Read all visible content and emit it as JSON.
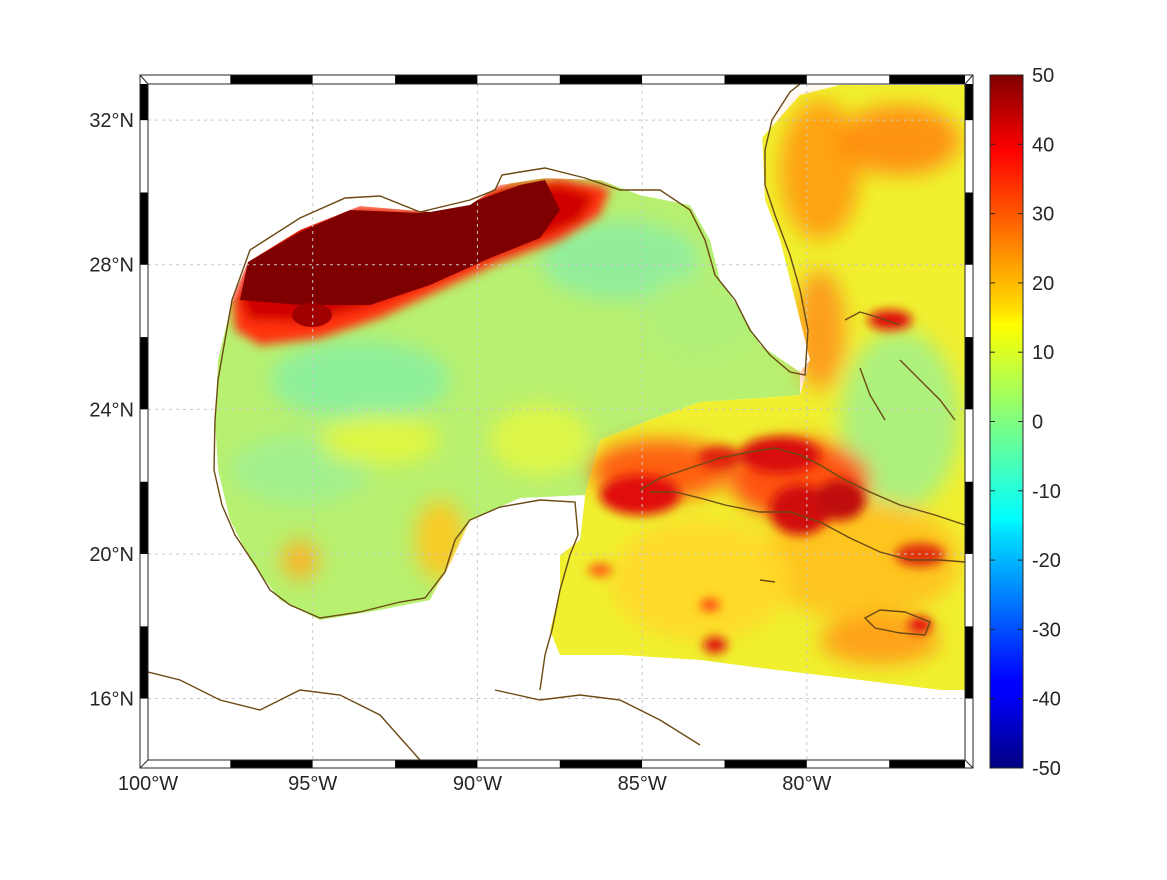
{
  "map": {
    "projection": "plate-carree",
    "extent": {
      "lon_min": -100,
      "lon_max": -75.2,
      "lat_min": 14.3,
      "lat_max": 33
    },
    "lon_ticks": [
      {
        "value": -100,
        "label": "100°W"
      },
      {
        "value": -95,
        "label": "95°W"
      },
      {
        "value": -90,
        "label": "90°W"
      },
      {
        "value": -85,
        "label": "85°W"
      },
      {
        "value": -80,
        "label": "80°W"
      }
    ],
    "lat_ticks": [
      {
        "value": 32,
        "label": "32°N"
      },
      {
        "value": 28,
        "label": "28°N"
      },
      {
        "value": 24,
        "label": "24°N"
      },
      {
        "value": 20,
        "label": "20°N"
      },
      {
        "value": 16,
        "label": "16°N"
      }
    ],
    "grid": true,
    "coastline_color": "#6b4a14",
    "land_color": "#ffffff"
  },
  "colorbar": {
    "min": -50,
    "max": 50,
    "colormap": "jet",
    "ticks": [
      "50",
      "40",
      "30",
      "20",
      "10",
      "0",
      "-10",
      "-20",
      "-30",
      "-40",
      "-50"
    ]
  },
  "field_highlights": [
    {
      "region": "northwestern Gulf shelf (Texas-Louisiana)",
      "value_range": [
        45,
        50
      ]
    },
    {
      "region": "Mississippi-Alabama shelf plume",
      "value_range": [
        30,
        50
      ]
    },
    {
      "region": "central and western Gulf basin",
      "value_range": [
        0,
        10
      ]
    },
    {
      "region": "Cuba and Bahamas banks",
      "value_range": [
        25,
        45
      ]
    },
    {
      "region": "Caribbean Sea south of Cuba",
      "value_range": [
        15,
        30
      ]
    },
    {
      "region": "Gulf Stream off Georgia-Carolina",
      "value_range": [
        20,
        35
      ]
    }
  ]
}
